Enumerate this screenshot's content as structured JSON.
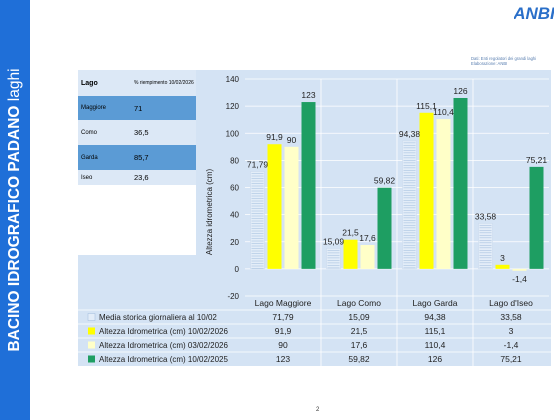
{
  "sidebar": {
    "title_bold": "BACINO IDROGRAFICO PADANO",
    "title_rest": " laghi"
  },
  "logo": {
    "text": "ANBI"
  },
  "source": {
    "line1": "Dati: Enti regolatori dei grandi laghi",
    "line2": "Elaborazione: ANBI"
  },
  "table": {
    "header_lake": "Lago",
    "header_fill": "% riempimento 10/02/2026",
    "rows": [
      {
        "lake": "Maggiore",
        "fill": "71"
      },
      {
        "lake": "Como",
        "fill": "36,5"
      },
      {
        "lake": "Garda",
        "fill": "85,7"
      },
      {
        "lake": "Iseo",
        "fill": "23,6"
      }
    ]
  },
  "colors": {
    "panel": "#d4e3f4",
    "sidebar": "#1f6fd8",
    "series": [
      "#e3edf8",
      "#ffff00",
      "#ffffc8",
      "#1e9e62"
    ]
  },
  "chart_data": {
    "type": "bar",
    "ylabel": "Altezza idrometrica (cm)",
    "ylim": [
      -20,
      140
    ],
    "yticks": [
      "140",
      "120",
      "100",
      "80",
      "60",
      "40",
      "20",
      "0",
      "-20"
    ],
    "categories": [
      "Lago Maggiore",
      "Lago Como",
      "Lago Garda",
      "Lago d'Iseo"
    ],
    "grid": true,
    "legend": "table below chart",
    "series": [
      {
        "name": "Media storica  giornaliera al 10/02",
        "values": [
          71.79,
          15.09,
          94.38,
          33.58
        ],
        "labels": [
          "71,79",
          "15,09",
          "94,38",
          "33,58"
        ]
      },
      {
        "name": "Altezza Idrometrica (cm) 10/02/2026",
        "values": [
          91.9,
          21.5,
          115.1,
          3
        ],
        "labels": [
          "91,9",
          "21,5",
          "115,1",
          "3"
        ]
      },
      {
        "name": "Altezza Idrometrica (cm) 03/02/2026",
        "values": [
          90,
          17.6,
          110.4,
          -1.4
        ],
        "labels": [
          "90",
          "17,6",
          "110,4",
          "-1,4"
        ]
      },
      {
        "name": "Altezza Idrometrica (cm) 10/02/2025",
        "values": [
          123,
          59.82,
          126,
          75.21
        ],
        "labels": [
          "123",
          "59,82",
          "126",
          "75,21"
        ]
      }
    ]
  },
  "page_number": "2"
}
